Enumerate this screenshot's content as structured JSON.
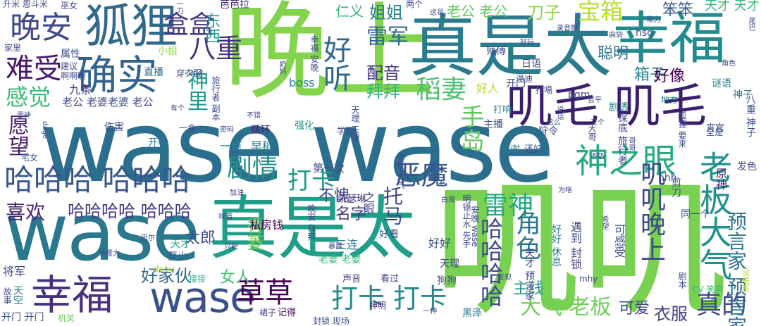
{
  "words": [
    {
      "text": "wase wase",
      "color": "#2b6f8e"
    },
    {
      "text": "叽叽",
      "color": "#79d151"
    },
    {
      "text": "晚上",
      "color": "#83d34d"
    },
    {
      "text": "真是太",
      "color": "#2a7b8e"
    },
    {
      "text": "幸福",
      "color": "#238a8d"
    },
    {
      "text": "wase",
      "color": "#2a788e"
    },
    {
      "text": "真是太",
      "color": "#1f9e89"
    },
    {
      "text": "狐狸",
      "color": "#31688e"
    },
    {
      "text": "叽毛 叽毛",
      "color": "#3b1f6e"
    },
    {
      "text": "确实",
      "color": "#33638d"
    },
    {
      "text": "幸福",
      "color": "#46327e"
    },
    {
      "text": "wase",
      "color": "#3b518b"
    },
    {
      "text": "哈哈哈 哈哈哈",
      "color": "#39568c"
    },
    {
      "text": "神之眼",
      "color": "#25ab82"
    },
    {
      "text": "老板大气",
      "color": "#21918c"
    },
    {
      "text": "晚安",
      "color": "#3e4a89"
    },
    {
      "text": "难受",
      "color": "#48186a"
    },
    {
      "text": "感觉",
      "color": "#3bbb75"
    },
    {
      "text": "好听",
      "color": "#31688e"
    },
    {
      "text": "盒盒",
      "color": "#453882"
    },
    {
      "text": "八重",
      "color": "#46327e"
    },
    {
      "text": "稻妻",
      "color": "#4ac16d"
    },
    {
      "text": "宝箱",
      "color": "#b5de2b"
    },
    {
      "text": "草草",
      "color": "#440154"
    },
    {
      "text": "打卡 打卡",
      "color": "#238a8d"
    },
    {
      "text": "打卡",
      "color": "#1e9b8a"
    },
    {
      "text": "恶魔",
      "color": "#3b528b"
    },
    {
      "text": "剧情",
      "color": "#21918c"
    },
    {
      "text": "叽叽晚上",
      "color": "#3e4989"
    },
    {
      "text": "雷神",
      "color": "#22a884"
    },
    {
      "text": "角色",
      "color": "#2a788e"
    },
    {
      "text": "手岛",
      "color": "#5ec962"
    },
    {
      "text": "真的",
      "color": "#3e4a89"
    },
    {
      "text": "哈哈哈哈",
      "color": "#3e4a89"
    },
    {
      "text": "预言家 预言家",
      "color": "#2c728e"
    },
    {
      "text": "喜欢",
      "color": "#482475"
    },
    {
      "text": "愿望",
      "color": "#481f70"
    },
    {
      "text": "神里",
      "color": "#1f988b"
    },
    {
      "text": "雷军",
      "color": "#2f6b8e"
    },
    {
      "text": "大气 老板",
      "color": "#6ece58"
    },
    {
      "text": "哈哈哈哈 哈哈哈",
      "color": "#433e85"
    },
    {
      "text": "好家伙",
      "color": "#32658e"
    },
    {
      "text": "托马",
      "color": "#414487"
    },
    {
      "text": "姐姐",
      "color": "#277f8e"
    },
    {
      "text": "刀子",
      "color": "#8fd744"
    },
    {
      "text": "笨笨",
      "color": "#38588c"
    },
    {
      "text": "配音",
      "color": "#443a83"
    },
    {
      "text": "拜拜",
      "color": "#35b779"
    },
    {
      "text": "箱子",
      "color": "#26828e"
    },
    {
      "text": "聪明",
      "color": "#2c728e"
    },
    {
      "text": "好像",
      "color": "#440154"
    },
    {
      "text": "衣服",
      "color": "#424086"
    },
    {
      "text": "可爱",
      "color": "#3e4a89"
    },
    {
      "text": "主线",
      "color": "#20928c"
    },
    {
      "text": "女人",
      "color": "#48c16e"
    },
    {
      "text": "名字",
      "color": "#453781"
    },
    {
      "text": "太郎",
      "color": "#3d4d8a"
    },
    {
      "text": "香菱",
      "color": "#7ad151"
    },
    {
      "text": "不愧",
      "color": "#404688"
    },
    {
      "text": "老公 老公",
      "color": "#5ec962"
    },
    {
      "text": "仁义",
      "color": "#35b779"
    },
    {
      "text": "东西",
      "color": "#1f988b"
    },
    {
      "text": "属性",
      "color": "#3b518b"
    },
    {
      "text": "直播",
      "color": "#31688e"
    },
    {
      "text": "小姐",
      "color": "#8fd744"
    },
    {
      "text": "九条",
      "color": "#453882"
    },
    {
      "text": "老公 老婆老婆 老公",
      "color": "#3e4a89"
    },
    {
      "text": "天才 天才",
      "color": "#35b779"
    },
    {
      "text": "芭芭拉",
      "color": "#472c7a"
    },
    {
      "text": "一点",
      "color": "#23898e"
    },
    {
      "text": "早稻",
      "color": "#26828e"
    },
    {
      "text": "第一次",
      "color": "#3e4a89"
    },
    {
      "text": "私房钱",
      "color": "#440154"
    },
    {
      "text": "三连",
      "color": "#2a788e"
    },
    {
      "text": "好看",
      "color": "#3b518b"
    },
    {
      "text": "好好",
      "color": "#3b528b"
    },
    {
      "text": "之眼",
      "color": "#414487"
    },
    {
      "text": "凯瑟琳",
      "color": "#453882"
    },
    {
      "text": "开门",
      "color": "#3e4a89"
    },
    {
      "text": "好人",
      "color": "#b5de2b"
    },
    {
      "text": "主播",
      "color": "#3e4989"
    },
    {
      "text": "打噶",
      "color": "#414487"
    },
    {
      "text": "bgm",
      "color": "#3e4a89"
    },
    {
      "text": "谜语",
      "color": "#26828e"
    },
    {
      "text": "强化",
      "color": "#1e9b8a"
    },
    {
      "text": "循环",
      "color": "#482173"
    },
    {
      "text": "开心",
      "color": "#2a788e"
    },
    {
      "text": "伤害",
      "color": "#3e4989"
    },
    {
      "text": "宅女",
      "color": "#38588c"
    },
    {
      "text": "至少",
      "color": "#3b528b"
    },
    {
      "text": "天才",
      "color": "#22a884"
    },
    {
      "text": "将军",
      "color": "#3e4a89"
    },
    {
      "text": "天空",
      "color": "#26828e"
    },
    {
      "text": "开门 开门",
      "color": "#3b528b"
    },
    {
      "text": "机关",
      "color": "#6ece58"
    },
    {
      "text": "接接",
      "color": "#2fb47c"
    },
    {
      "text": "声音",
      "color": "#414487"
    },
    {
      "text": "看过",
      "color": "#3e4a89"
    },
    {
      "text": "老婆 老婆",
      "color": "#32b67a"
    },
    {
      "text": "记得",
      "color": "#440154"
    },
    {
      "text": "裙子",
      "color": "#443983"
    },
    {
      "text": "神明",
      "color": "#482878"
    },
    {
      "text": "黑泽",
      "color": "#2a788e"
    },
    {
      "text": "狗狗",
      "color": "#3e4a89"
    },
    {
      "text": "天理",
      "color": "#3e4989"
    },
    {
      "text": "封锁 现场",
      "color": "#3e4a89"
    },
    {
      "text": "遇到 封锁",
      "color": "#414487"
    },
    {
      "text": "好好 休息",
      "color": "#2a788e"
    },
    {
      "text": "可感受",
      "color": "#3b528b"
    },
    {
      "text": "原神",
      "color": "#482878"
    },
    {
      "text": "神子",
      "color": "#2a788e"
    },
    {
      "text": "发色",
      "color": "#3e4a89"
    },
    {
      "text": "八重 神子",
      "color": "#3b528b"
    },
    {
      "text": "狩令",
      "color": "#3b528b"
    },
    {
      "text": "剧透",
      "color": "#26828e"
    },
    {
      "text": "hso",
      "color": "#3e4a89"
    },
    {
      "text": "日语",
      "color": "#3e4a89"
    },
    {
      "text": "温迪",
      "color": "#3e4989"
    },
    {
      "text": "师傅",
      "color": "#3e4a89"
    },
    {
      "text": "打响",
      "color": "#26828e"
    },
    {
      "text": "地方",
      "color": "#2a788e"
    },
    {
      "text": "谢谢",
      "color": "#2a788e"
    },
    {
      "text": "还好",
      "color": "#3b528b"
    },
    {
      "text": "宵宫",
      "color": "#3b528b"
    },
    {
      "text": "hhh",
      "color": "#3e4a89"
    },
    {
      "text": "同一个",
      "color": "#3e4989"
    },
    {
      "text": "CV 笑声",
      "color": "#2fb47c"
    },
    {
      "text": "没关系",
      "color": "#b5de2b"
    },
    {
      "text": "mhy",
      "color": "#3e4a89"
    },
    {
      "text": "发现",
      "color": "#3e4a89"
    },
    {
      "text": "一种",
      "color": "#3e4a89"
    },
    {
      "text": "巴尔",
      "color": "#3e4a89"
    },
    {
      "text": "味道",
      "color": "#3e4a89"
    },
    {
      "text": "神樱大",
      "color": "#3e4a89"
    },
    {
      "text": "debu",
      "color": "#b5de2b"
    },
    {
      "text": "暴露",
      "color": "#3e4a89"
    },
    {
      "text": "只能",
      "color": "#3e4a89"
    },
    {
      "text": "故事",
      "color": "#3e4a89"
    },
    {
      "text": "升米 恩斗米",
      "color": "#3e4a89"
    },
    {
      "text": "巫女",
      "color": "#3e4a89"
    },
    {
      "text": "家里",
      "color": "#3e4a89"
    },
    {
      "text": "建议",
      "color": "#3e4a89"
    },
    {
      "text": "啊啊啊",
      "color": "#3e4a89"
    },
    {
      "text": "一会",
      "color": "#3e4a89"
    },
    {
      "text": "密码",
      "color": "#3e4a89"
    },
    {
      "text": "学会",
      "color": "#3e4a89"
    },
    {
      "text": "两个",
      "color": "#3e4a89"
    },
    {
      "text": "这是",
      "color": "#3e4a89"
    },
    {
      "text": "录音棚",
      "color": "#3e4a89"
    },
    {
      "text": "麻袋",
      "color": "#3e4a89"
    },
    {
      "text": "boss",
      "color": "#26828e"
    },
    {
      "text": "旅行者 副本",
      "color": "#3e4a89"
    },
    {
      "text": "穿衣服",
      "color": "#3e4a89"
    },
    {
      "text": "幸福 安晚",
      "color": "#3e4a89"
    },
    {
      "text": "安晚 wase",
      "color": "#3e4a89"
    },
    {
      "text": "明镜止水 先手",
      "color": "#3e4a89"
    },
    {
      "text": "白鹭",
      "color": "#3e4a89"
    },
    {
      "text": "晚安 拜拜",
      "color": "#3e4a89"
    },
    {
      "text": "天理 天理",
      "color": "#3e4a89"
    },
    {
      "text": "加油",
      "color": "#3e4a89"
    },
    {
      "text": "大哥",
      "color": "#3e4a89"
    },
    {
      "text": "保底 旅行者",
      "color": "#3e4a89"
    },
    {
      "text": "狐狸 要来",
      "color": "#3e4a89"
    },
    {
      "text": "天才 预言家",
      "color": "#3e4a89"
    },
    {
      "text": "剧本",
      "color": "#3e4a89"
    },
    {
      "text": "剪刀",
      "color": "#3e4a89"
    },
    {
      "text": "希望",
      "color": "#3e4a89"
    },
    {
      "text": "老板 大气",
      "color": "#3e4a89"
    },
    {
      "text": "有个",
      "color": "#3e4a89"
    },
    {
      "text": "奶妈",
      "color": "#3e4a89"
    },
    {
      "text": "不错",
      "color": "#3e4a89"
    },
    {
      "text": "dage",
      "color": "#3e4a89"
    },
    {
      "text": "雷神",
      "color": "#3e4a89"
    },
    {
      "text": "好玩",
      "color": "#3e4a89"
    },
    {
      "text": "能力",
      "color": "#3e4a89"
    },
    {
      "text": "全是",
      "color": "#3e4a89"
    },
    {
      "text": "角色",
      "color": "#3e4a89"
    },
    {
      "text": "一刀",
      "color": "#3e4a89"
    },
    {
      "text": "尾巴",
      "color": "#3e4a89"
    },
    {
      "text": "不奶",
      "color": "#3e4a89"
    },
    {
      "text": "为啥",
      "color": "#3e4a89"
    },
    {
      "text": "说话",
      "color": "#3e4a89"
    },
    {
      "text": "三个",
      "color": "#3e4a89"
    },
    {
      "text": "哥哥",
      "color": "#3e4a89"
    },
    {
      "text": "哲平",
      "color": "#3e4a89"
    },
    {
      "text": "这么",
      "color": "#3e4a89"
    }
  ]
}
